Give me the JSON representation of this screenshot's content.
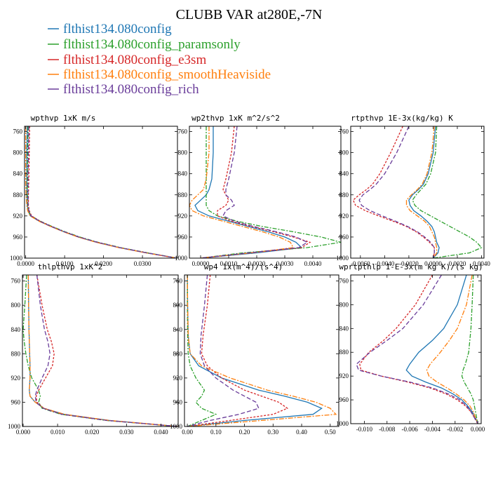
{
  "title": "CLUBB VAR at280E,-7N",
  "colors": {
    "s0": "#1f77b4",
    "s1": "#2ca02c",
    "s2": "#d62728",
    "s3": "#ff7f0e",
    "s4": "#6a3d9a"
  },
  "legend": [
    "flthist134.080config",
    "flthist134.080config_paramsonly",
    "flthist134.080config_e3sm",
    "flthist134.080config_smoothHeaviside",
    "flthist134.080config_rich"
  ],
  "chart_data": [
    {
      "type": "line",
      "title": "wpthvp  1xK m/s",
      "xlim": [
        -0.0003,
        0.039
      ],
      "ylim": [
        1000,
        750
      ],
      "xticks": [
        0,
        0.01,
        0.02,
        0.03
      ],
      "xtick_labels": [
        "0.0000",
        "0.0100",
        "0.0200",
        "0.0300"
      ],
      "yticks": [
        760,
        800,
        840,
        880,
        920,
        960,
        1000
      ],
      "y": [
        750,
        800,
        850,
        880,
        900,
        910,
        920,
        930,
        940,
        950,
        960,
        970,
        980,
        990,
        1000
      ],
      "series": [
        {
          "values": [
            0.0004,
            0.0003,
            0.0003,
            0.0003,
            0.0004,
            0.0006,
            0.0012,
            0.0035,
            0.0065,
            0.0098,
            0.0135,
            0.0182,
            0.024,
            0.031,
            0.0389
          ]
        },
        {
          "values": [
            0.0006,
            0.0005,
            0.0004,
            0.0004,
            0.0005,
            0.0007,
            0.0014,
            0.0038,
            0.0068,
            0.0101,
            0.0139,
            0.0186,
            0.0244,
            0.0314,
            0.039
          ]
        },
        {
          "values": [
            0.001,
            0.0009,
            0.0008,
            0.0007,
            0.0007,
            0.0009,
            0.0015,
            0.0037,
            0.0066,
            0.0099,
            0.0136,
            0.0183,
            0.0241,
            0.0311,
            0.0388
          ]
        },
        {
          "values": [
            0.0,
            0.0,
            0.0,
            0.0001,
            0.0003,
            0.0005,
            0.0011,
            0.0034,
            0.0064,
            0.0097,
            0.0134,
            0.0181,
            0.0239,
            0.0309,
            0.0388
          ]
        },
        {
          "values": [
            0.0008,
            0.0007,
            0.0006,
            0.0006,
            0.0006,
            0.0008,
            0.0014,
            0.0036,
            0.0066,
            0.0099,
            0.0137,
            0.0184,
            0.0242,
            0.0312,
            0.0388
          ]
        }
      ]
    },
    {
      "type": "line",
      "title": "wp2thvp  1xK m^2/s^2",
      "xlim": [
        -0.0004,
        0.005
      ],
      "ylim": [
        1000,
        750
      ],
      "xticks": [
        0,
        0.001,
        0.002,
        0.003,
        0.004
      ],
      "xtick_labels": [
        "0.0000",
        "0.0010",
        "0.0020",
        "0.0030",
        "0.0040"
      ],
      "yticks": [
        760,
        800,
        840,
        880,
        920,
        960,
        1000
      ],
      "y": [
        750,
        800,
        850,
        870,
        880,
        890,
        900,
        910,
        920,
        930,
        940,
        950,
        960,
        970,
        980,
        990,
        1000
      ],
      "series": [
        {
          "values": [
            0.00045,
            0.00045,
            0.0004,
            0.0003,
            0.0002,
            0.0,
            -0.0002,
            -0.0001,
            0.0003,
            0.001,
            0.0017,
            0.0024,
            0.003,
            0.0034,
            0.0036,
            0.002,
            0.0
          ]
        },
        {
          "values": [
            0.0002,
            0.0002,
            0.0002,
            0.0002,
            0.0002,
            0.0002,
            0.0002,
            0.0003,
            0.0006,
            0.0013,
            0.0022,
            0.0033,
            0.0043,
            0.005,
            0.0038,
            0.0015,
            0.0
          ]
        },
        {
          "values": [
            0.0012,
            0.0011,
            0.0009,
            0.0008,
            0.0009,
            0.001,
            0.0009,
            0.0006,
            0.0006,
            0.0011,
            0.0018,
            0.0026,
            0.0033,
            0.0039,
            0.0036,
            0.0018,
            0.0
          ]
        },
        {
          "values": [
            0.0003,
            0.0003,
            0.0002,
            0.0001,
            -0.0001,
            -0.0003,
            -0.0004,
            -0.0003,
            0.0001,
            0.0008,
            0.0015,
            0.0022,
            0.0028,
            0.0032,
            0.0033,
            0.0018,
            0.0
          ]
        },
        {
          "values": [
            0.0013,
            0.0012,
            0.001,
            0.0009,
            0.0009,
            0.0011,
            0.0012,
            0.0009,
            0.0008,
            0.0012,
            0.0019,
            0.0027,
            0.0034,
            0.0038,
            0.0035,
            0.0017,
            0.0
          ]
        }
      ]
    },
    {
      "type": "line",
      "title": "rtpthvp  1E-3x(kg/kg) K",
      "xlim": [
        -0.0068,
        0.0042
      ],
      "ylim": [
        1000,
        750
      ],
      "xticks": [
        -0.006,
        -0.004,
        -0.002,
        0,
        0.002,
        0.004
      ],
      "xtick_labels": [
        "-0.0060",
        "-0.0040",
        "-0.0020",
        "0.0000",
        "0.0020",
        "0.0040"
      ],
      "yticks": [
        760,
        800,
        840,
        880,
        920,
        960,
        1000
      ],
      "y": [
        750,
        800,
        840,
        860,
        870,
        880,
        890,
        900,
        910,
        920,
        930,
        940,
        950,
        960,
        970,
        980,
        990,
        1000
      ],
      "series": [
        {
          "values": [
            0.0002,
            0.0,
            -0.0004,
            -0.0008,
            -0.0012,
            -0.0017,
            -0.002,
            -0.0019,
            -0.0016,
            -0.001,
            -0.0005,
            -0.0001,
            0.0001,
            0.0002,
            0.0003,
            0.0005,
            0.0004,
            0.0
          ]
        },
        {
          "values": [
            0.0003,
            0.0002,
            -0.0002,
            -0.0006,
            -0.001,
            -0.0014,
            -0.0017,
            -0.0015,
            -0.001,
            -0.0002,
            0.0006,
            0.0014,
            0.0022,
            0.003,
            0.0036,
            0.004,
            0.003,
            0.0
          ]
        },
        {
          "values": [
            -0.0025,
            -0.0035,
            -0.0044,
            -0.005,
            -0.0055,
            -0.0061,
            -0.0066,
            -0.0064,
            -0.0056,
            -0.0045,
            -0.0033,
            -0.0022,
            -0.0014,
            -0.0008,
            -0.0003,
            0.0001,
            0.0001,
            0.0
          ]
        },
        {
          "values": [
            0.0001,
            -0.0001,
            -0.0005,
            -0.0009,
            -0.0013,
            -0.0018,
            -0.0022,
            -0.0022,
            -0.0019,
            -0.0013,
            -0.0007,
            -0.0003,
            -0.0001,
            0.0001,
            0.0002,
            0.0003,
            0.0003,
            0.0
          ]
        },
        {
          "values": [
            -0.002,
            -0.003,
            -0.004,
            -0.0047,
            -0.0052,
            -0.0058,
            -0.0061,
            -0.0059,
            -0.0052,
            -0.0042,
            -0.0031,
            -0.0021,
            -0.0013,
            -0.0007,
            -0.0002,
            0.0001,
            0.0001,
            0.0
          ]
        }
      ]
    },
    {
      "type": "line",
      "title": "thlpthvp  1xK^2",
      "xlim": [
        -0.0002,
        0.045
      ],
      "ylim": [
        1000,
        750
      ],
      "xticks": [
        0,
        0.01,
        0.02,
        0.03,
        0.04
      ],
      "xtick_labels": [
        "0.000",
        "0.010",
        "0.020",
        "0.030",
        "0.040"
      ],
      "yticks": [
        760,
        800,
        840,
        880,
        920,
        960,
        1000
      ],
      "y": [
        750,
        800,
        840,
        860,
        880,
        900,
        920,
        940,
        950,
        960,
        970,
        980,
        990,
        1000
      ],
      "series": [
        {
          "values": [
            0.0015,
            0.0016,
            0.0017,
            0.0018,
            0.0019,
            0.002,
            0.002,
            0.0018,
            0.002,
            0.0035,
            0.006,
            0.012,
            0.025,
            0.045
          ]
        },
        {
          "values": [
            0.001,
            0.0005,
            0.0,
            0.0003,
            0.0008,
            0.0015,
            0.0025,
            0.0045,
            0.005,
            0.0045,
            0.0055,
            0.011,
            0.024,
            0.045
          ]
        },
        {
          "values": [
            0.004,
            0.0055,
            0.007,
            0.0082,
            0.009,
            0.0085,
            0.0065,
            0.0045,
            0.0038,
            0.004,
            0.006,
            0.0115,
            0.0245,
            0.045
          ]
        },
        {
          "values": [
            0.0015,
            0.0016,
            0.0017,
            0.0018,
            0.0019,
            0.002,
            0.002,
            0.0018,
            0.002,
            0.0035,
            0.006,
            0.012,
            0.025,
            0.045
          ]
        },
        {
          "values": [
            0.004,
            0.005,
            0.0062,
            0.0072,
            0.0078,
            0.0072,
            0.0055,
            0.004,
            0.0035,
            0.0038,
            0.0058,
            0.0113,
            0.0243,
            0.045
          ]
        }
      ]
    },
    {
      "type": "line",
      "title": "wp4  1x(m^4)/(s^4)",
      "xlim": [
        -0.01,
        0.53
      ],
      "ylim": [
        1000,
        750
      ],
      "xticks": [
        0,
        0.1,
        0.2,
        0.3,
        0.4,
        0.5
      ],
      "xtick_labels": [
        "0.00",
        "0.10",
        "0.20",
        "0.30",
        "0.40",
        "0.50"
      ],
      "yticks": [
        760,
        800,
        840,
        880,
        920,
        960,
        1000
      ],
      "y": [
        750,
        800,
        850,
        880,
        900,
        920,
        940,
        950,
        960,
        970,
        980,
        990,
        1000
      ],
      "series": [
        {
          "values": [
            0.0,
            0.001,
            0.003,
            0.01,
            0.04,
            0.12,
            0.25,
            0.34,
            0.42,
            0.47,
            0.44,
            0.2,
            0.0
          ]
        },
        {
          "values": [
            0.0,
            0.0,
            0.001,
            0.003,
            0.01,
            0.03,
            0.06,
            0.05,
            0.03,
            0.05,
            0.1,
            0.05,
            0.0
          ]
        },
        {
          "values": [
            0.08,
            0.07,
            0.055,
            0.05,
            0.07,
            0.12,
            0.2,
            0.26,
            0.32,
            0.35,
            0.3,
            0.15,
            0.0
          ]
        },
        {
          "values": [
            0.0,
            0.001,
            0.003,
            0.01,
            0.05,
            0.15,
            0.28,
            0.37,
            0.45,
            0.5,
            0.52,
            0.26,
            0.0
          ]
        },
        {
          "values": [
            0.07,
            0.06,
            0.048,
            0.045,
            0.06,
            0.1,
            0.16,
            0.2,
            0.24,
            0.25,
            0.18,
            0.08,
            0.0
          ]
        }
      ]
    },
    {
      "type": "line",
      "title": "wprtpthlp  1-E-3x(m kg K)/(s kg)",
      "xlim": [
        -0.0112,
        0.0003
      ],
      "ylim": [
        1000,
        750
      ],
      "xticks": [
        -0.01,
        -0.008,
        -0.006,
        -0.004,
        -0.002,
        0
      ],
      "xtick_labels": [
        "-0.010",
        "-0.008",
        "-0.006",
        "-0.004",
        "-0.002",
        "0.000"
      ],
      "yticks": [
        760,
        800,
        840,
        880,
        920,
        960,
        1000
      ],
      "y": [
        750,
        800,
        840,
        860,
        880,
        900,
        910,
        920,
        930,
        940,
        950,
        960,
        970,
        980,
        990,
        1000
      ],
      "series": [
        {
          "values": [
            -0.001,
            -0.0018,
            -0.003,
            -0.004,
            -0.0052,
            -0.006,
            -0.0063,
            -0.0058,
            -0.0046,
            -0.0032,
            -0.0022,
            -0.0014,
            -0.0009,
            -0.0005,
            -0.0002,
            0.0
          ]
        },
        {
          "values": [
            -0.0004,
            -0.0005,
            -0.0006,
            -0.0007,
            -0.0008,
            -0.0011,
            -0.0013,
            -0.0014,
            -0.0012,
            -0.0009,
            -0.0006,
            -0.0004,
            -0.0003,
            -0.0002,
            -0.0001,
            0.0
          ]
        },
        {
          "values": [
            -0.004,
            -0.0055,
            -0.0072,
            -0.0083,
            -0.0096,
            -0.0104,
            -0.0103,
            -0.0085,
            -0.0062,
            -0.0042,
            -0.0028,
            -0.0018,
            -0.0011,
            -0.0006,
            -0.0003,
            0.0
          ]
        },
        {
          "values": [
            -0.0005,
            -0.001,
            -0.0018,
            -0.0025,
            -0.0033,
            -0.0042,
            -0.0045,
            -0.0043,
            -0.0036,
            -0.0027,
            -0.0019,
            -0.0012,
            -0.0007,
            -0.0004,
            -0.0002,
            0.0
          ]
        },
        {
          "values": [
            -0.0032,
            -0.0048,
            -0.0066,
            -0.008,
            -0.0095,
            -0.0107,
            -0.0105,
            -0.0085,
            -0.006,
            -0.004,
            -0.0026,
            -0.0016,
            -0.001,
            -0.0006,
            -0.0003,
            0.0
          ]
        }
      ]
    }
  ]
}
